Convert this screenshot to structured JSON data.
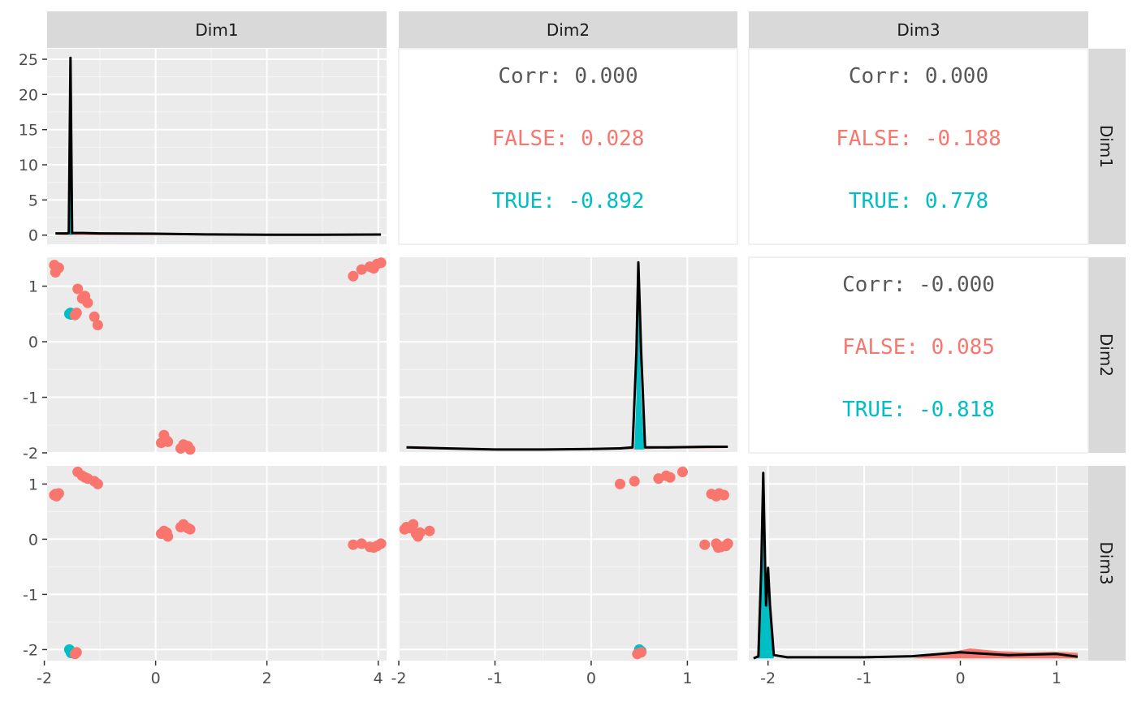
{
  "chart_data": {
    "type": "scatter",
    "plot_kind": "pairs matrix (ggpairs) colored by group",
    "variables": [
      "Dim1",
      "Dim2",
      "Dim3"
    ],
    "groups": [
      {
        "name": "FALSE",
        "color": "#F8766D"
      },
      {
        "name": "TRUE",
        "color": "#00BFC4"
      }
    ],
    "axes": {
      "Dim1": {
        "range": [
          -1.95,
          4.15
        ],
        "ticks": [
          -2,
          0,
          2,
          4
        ],
        "tick_labels": [
          "-2",
          "0",
          "2",
          "4"
        ]
      },
      "Dim2": {
        "range": [
          -2.0,
          1.52
        ],
        "ticks": [
          -2,
          -1,
          0,
          1
        ],
        "tick_labels": [
          "-2",
          "-1",
          "0",
          "1"
        ]
      },
      "Dim3": {
        "range": [
          -2.2,
          1.33
        ],
        "ticks": [
          -2,
          -1,
          0,
          1
        ],
        "tick_labels": [
          "-2",
          "-1",
          "0",
          "1"
        ]
      },
      "density_y": {
        "range": [
          -1.3,
          26.5
        ],
        "ticks": [
          0,
          5,
          10,
          15,
          20,
          25
        ],
        "tick_labels": [
          "0",
          "5",
          "10",
          "15",
          "20",
          "25"
        ]
      }
    },
    "correlations": [
      {
        "row": "Dim1",
        "col": "Dim2",
        "lines": [
          {
            "text": "Corr: 0.000",
            "group": "overall"
          },
          {
            "text": "FALSE: 0.028",
            "group": "FALSE"
          },
          {
            "text": "TRUE: -0.892",
            "group": "TRUE"
          }
        ]
      },
      {
        "row": "Dim1",
        "col": "Dim3",
        "lines": [
          {
            "text": "Corr: 0.000",
            "group": "overall"
          },
          {
            "text": "FALSE: -0.188",
            "group": "FALSE"
          },
          {
            "text": "TRUE: 0.778",
            "group": "TRUE"
          }
        ]
      },
      {
        "row": "Dim2",
        "col": "Dim3",
        "lines": [
          {
            "text": "Corr: -0.000",
            "group": "overall"
          },
          {
            "text": "FALSE: 0.085",
            "group": "FALSE"
          },
          {
            "text": "TRUE: -0.818",
            "group": "TRUE"
          }
        ]
      }
    ],
    "densities": {
      "Dim1": {
        "overall": [
          [
            -1.8,
            0.25
          ],
          [
            -1.6,
            0.25
          ],
          [
            -1.56,
            0.3
          ],
          [
            -1.53,
            25.2
          ],
          [
            -1.5,
            0.3
          ],
          [
            -1.3,
            0.3
          ],
          [
            -1.0,
            0.25
          ],
          [
            0,
            0.2
          ],
          [
            1,
            0.1
          ],
          [
            2,
            0.05
          ],
          [
            3,
            0.05
          ],
          [
            4,
            0.08
          ],
          [
            4.05,
            0.08
          ]
        ],
        "TRUE": [
          [
            -1.56,
            0
          ],
          [
            -1.545,
            1
          ],
          [
            -1.53,
            25.2
          ],
          [
            -1.515,
            1
          ],
          [
            -1.5,
            0
          ]
        ],
        "FALSE": [
          [
            -1.8,
            0
          ],
          [
            -1.5,
            0.12
          ],
          [
            -1.0,
            0.1
          ],
          [
            0,
            0.1
          ],
          [
            1,
            0.05
          ],
          [
            2,
            0
          ],
          [
            3,
            0.04
          ],
          [
            4,
            0.06
          ],
          [
            4.05,
            0
          ]
        ]
      },
      "Dim2": {
        "overall": [
          [
            -1.92,
            -1.9
          ],
          [
            -1.5,
            -1.92
          ],
          [
            -1.0,
            -1.94
          ],
          [
            -0.5,
            -1.94
          ],
          [
            0,
            -1.93
          ],
          [
            0.3,
            -1.92
          ],
          [
            0.43,
            -1.9
          ],
          [
            0.47,
            -0.2
          ],
          [
            0.49,
            1.43
          ],
          [
            0.52,
            -0.2
          ],
          [
            0.56,
            -1.9
          ],
          [
            0.8,
            -1.9
          ],
          [
            1.2,
            -1.89
          ],
          [
            1.42,
            -1.89
          ]
        ],
        "TRUE": [
          [
            0.45,
            -1.94
          ],
          [
            0.47,
            -1.0
          ],
          [
            0.49,
            1.43
          ],
          [
            0.52,
            -1.0
          ],
          [
            0.55,
            -1.94
          ]
        ],
        "FALSE": [
          [
            -1.92,
            -1.93
          ],
          [
            -1.0,
            -1.94
          ],
          [
            0,
            -1.94
          ],
          [
            0.6,
            -1.93
          ],
          [
            1.0,
            -1.91
          ],
          [
            1.42,
            -1.92
          ]
        ]
      },
      "Dim3": {
        "overall": [
          [
            -2.15,
            -2.16
          ],
          [
            -2.1,
            -2.12
          ],
          [
            -2.07,
            -0.5
          ],
          [
            -2.05,
            1.2
          ],
          [
            -2.03,
            -0.5
          ],
          [
            -2.02,
            -1.2
          ],
          [
            -2.0,
            -0.52
          ],
          [
            -1.98,
            -1.2
          ],
          [
            -1.94,
            -2.1
          ],
          [
            -1.8,
            -2.14
          ],
          [
            -1.0,
            -2.14
          ],
          [
            -0.5,
            -2.12
          ],
          [
            0,
            -2.05
          ],
          [
            0.5,
            -2.1
          ],
          [
            1.0,
            -2.08
          ],
          [
            1.22,
            -2.13
          ]
        ],
        "TRUE": [
          [
            -2.11,
            -2.16
          ],
          [
            -2.07,
            -0.5
          ],
          [
            -2.05,
            1.2
          ],
          [
            -2.03,
            -0.5
          ],
          [
            -2.02,
            -1.2
          ],
          [
            -2.0,
            -0.52
          ],
          [
            -1.98,
            -1.2
          ],
          [
            -1.94,
            -2.16
          ]
        ],
        "FALSE": [
          [
            -0.5,
            -2.16
          ],
          [
            -0.2,
            -2.08
          ],
          [
            0.1,
            -1.98
          ],
          [
            0.4,
            -2.03
          ],
          [
            0.7,
            -2.05
          ],
          [
            1.0,
            -2.04
          ],
          [
            1.22,
            -2.06
          ],
          [
            1.22,
            -2.16
          ]
        ]
      }
    },
    "points": [
      {
        "g": "FALSE",
        "dim1": -1.82,
        "dim2": 1.38,
        "dim3": 0.8
      },
      {
        "g": "FALSE",
        "dim1": -1.78,
        "dim2": 1.3,
        "dim3": 0.78
      },
      {
        "g": "FALSE",
        "dim1": -1.8,
        "dim2": 1.25,
        "dim3": 0.82
      },
      {
        "g": "FALSE",
        "dim1": -1.74,
        "dim2": 1.33,
        "dim3": 0.83
      },
      {
        "g": "FALSE",
        "dim1": -1.4,
        "dim2": 0.95,
        "dim3": 1.22
      },
      {
        "g": "FALSE",
        "dim1": -1.32,
        "dim2": 0.78,
        "dim3": 1.15
      },
      {
        "g": "FALSE",
        "dim1": -1.27,
        "dim2": 0.82,
        "dim3": 1.12
      },
      {
        "g": "FALSE",
        "dim1": -1.22,
        "dim2": 0.7,
        "dim3": 1.1
      },
      {
        "g": "FALSE",
        "dim1": -1.1,
        "dim2": 0.45,
        "dim3": 1.05
      },
      {
        "g": "FALSE",
        "dim1": -1.04,
        "dim2": 0.3,
        "dim3": 1.0
      },
      {
        "g": "FALSE",
        "dim1": -1.45,
        "dim2": 0.48,
        "dim3": -2.08
      },
      {
        "g": "FALSE",
        "dim1": -1.42,
        "dim2": 0.52,
        "dim3": -2.05
      },
      {
        "g": "FALSE",
        "dim1": 0.1,
        "dim2": -1.82,
        "dim3": 0.1
      },
      {
        "g": "FALSE",
        "dim1": 0.15,
        "dim2": -1.68,
        "dim3": 0.15
      },
      {
        "g": "FALSE",
        "dim1": 0.2,
        "dim2": -1.78,
        "dim3": 0.12
      },
      {
        "g": "FALSE",
        "dim1": 0.22,
        "dim2": -1.8,
        "dim3": 0.05
      },
      {
        "g": "FALSE",
        "dim1": 0.45,
        "dim2": -1.92,
        "dim3": 0.22
      },
      {
        "g": "FALSE",
        "dim1": 0.5,
        "dim2": -1.85,
        "dim3": 0.27
      },
      {
        "g": "FALSE",
        "dim1": 0.58,
        "dim2": -1.88,
        "dim3": 0.2
      },
      {
        "g": "FALSE",
        "dim1": 0.62,
        "dim2": -1.94,
        "dim3": 0.18
      },
      {
        "g": "FALSE",
        "dim1": 3.55,
        "dim2": 1.18,
        "dim3": -0.1
      },
      {
        "g": "FALSE",
        "dim1": 3.7,
        "dim2": 1.3,
        "dim3": -0.08
      },
      {
        "g": "FALSE",
        "dim1": 3.85,
        "dim2": 1.35,
        "dim3": -0.14
      },
      {
        "g": "FALSE",
        "dim1": 3.92,
        "dim2": 1.32,
        "dim3": -0.15
      },
      {
        "g": "FALSE",
        "dim1": 3.98,
        "dim2": 1.4,
        "dim3": -0.12
      },
      {
        "g": "FALSE",
        "dim1": 4.05,
        "dim2": 1.42,
        "dim3": -0.08
      },
      {
        "g": "TRUE",
        "dim1": -1.55,
        "dim2": 0.5,
        "dim3": -2.0
      },
      {
        "g": "TRUE",
        "dim1": -1.52,
        "dim2": 0.49,
        "dim3": -2.06
      },
      {
        "g": "TRUE",
        "dim1": -1.53,
        "dim2": 0.52,
        "dim3": -2.03
      }
    ]
  }
}
